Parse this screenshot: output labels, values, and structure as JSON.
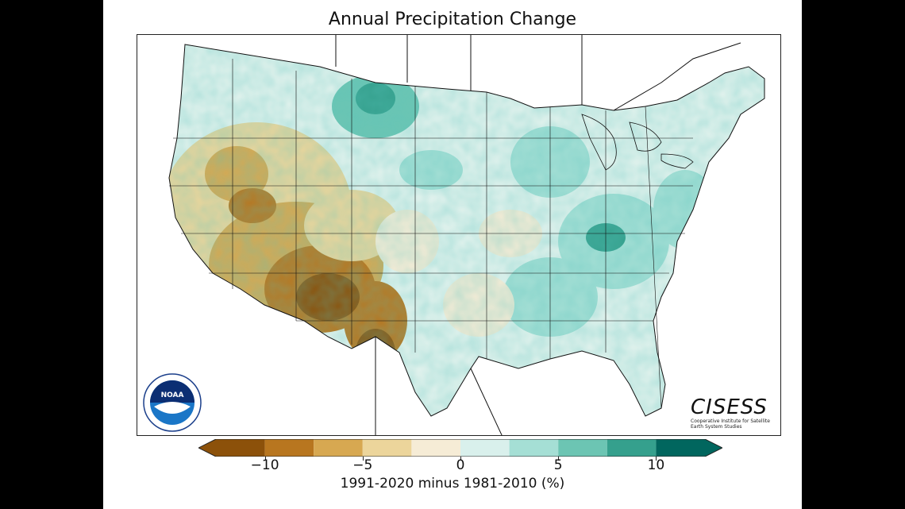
{
  "figure": {
    "title": "Annual Precipitation Change",
    "colorbar_label": "1991-2020 minus 1981-2010 (%)",
    "colorbar_ticks": [
      "−10",
      "−5",
      "0",
      "5",
      "10"
    ],
    "colorbar_tick_values": [
      -10,
      -5,
      0,
      5,
      10
    ],
    "colorbar_range": [
      -12.5,
      12.5
    ],
    "colorbar_bins": [
      {
        "from": -12.5,
        "to": -10,
        "color": "#8c510a"
      },
      {
        "from": -10,
        "to": -7.5,
        "color": "#b8761f"
      },
      {
        "from": -7.5,
        "to": -5,
        "color": "#d7a851"
      },
      {
        "from": -5,
        "to": -2.5,
        "color": "#ecd59b"
      },
      {
        "from": -2.5,
        "to": 0,
        "color": "#f6ecd6"
      },
      {
        "from": 0,
        "to": 2.5,
        "color": "#d9f0ec"
      },
      {
        "from": 2.5,
        "to": 5,
        "color": "#a5dfd5"
      },
      {
        "from": 5,
        "to": 7.5,
        "color": "#6cc5b3"
      },
      {
        "from": 7.5,
        "to": 10,
        "color": "#35a08d"
      },
      {
        "from": 10,
        "to": 12.5,
        "color": "#01665e"
      }
    ]
  },
  "logos": {
    "noaa": {
      "text": "NOAA",
      "icon": "noaa-logo-icon"
    },
    "cisess": {
      "brand": "CISESS",
      "subtitle": "Cooperative Institute for Satellite Earth System Studies"
    }
  },
  "map": {
    "region": "Contiguous United States",
    "colors": {
      "background": "#ffffff",
      "border": "#222222"
    }
  }
}
